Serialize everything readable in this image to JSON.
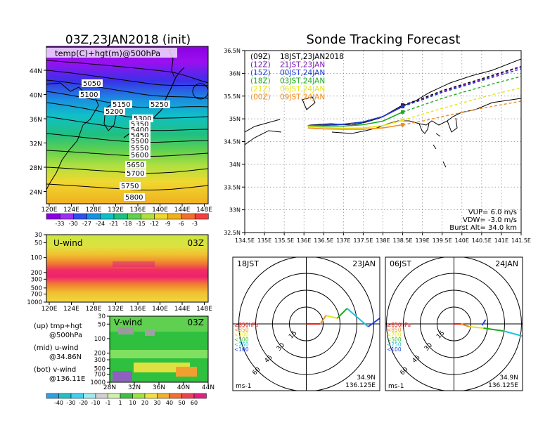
{
  "left": {
    "title": "03Z,23JAN2018 (init)",
    "map_label": "temp(C)+hgt(m)@500hPa",
    "contour_labels": [
      "5050",
      "5100",
      "5150",
      "5200",
      "5250",
      "5300",
      "5350",
      "5400",
      "5450",
      "5500",
      "5550",
      "5600",
      "5650",
      "5700",
      "5750",
      "5800"
    ],
    "lat_ticks": [
      "44N",
      "40N",
      "36N",
      "32N",
      "28N",
      "24N"
    ],
    "lon_ticks": [
      "120E",
      "124E",
      "128E",
      "132E",
      "136E",
      "140E",
      "144E",
      "148E"
    ],
    "temp_colorbar": [
      "-33",
      "-30",
      "-27",
      "-24",
      "-21",
      "-18",
      "-15",
      "-12",
      "-9",
      "-6",
      "-3"
    ],
    "uwind": {
      "label": "U-wind",
      "time": "03Z",
      "p_ticks": [
        "30",
        "50",
        "100",
        "200",
        "300",
        "500",
        "700",
        "1000"
      ]
    },
    "vwind": {
      "label": "V-wind",
      "time": "03Z",
      "p_ticks": [
        "30",
        "50",
        "100",
        "200",
        "300",
        "500",
        "700",
        "1000"
      ],
      "lat_ticks": [
        "28N",
        "32N",
        "36N",
        "40N",
        "44N"
      ]
    },
    "legend_lines": [
      [
        "(up) tmp+hgt",
        "@500hPa"
      ],
      [
        "(mid) u-wind",
        "@34.86N"
      ],
      [
        "(bot) v-wind",
        "@136.11E"
      ]
    ],
    "wind_colorbar": [
      "-40",
      "-30",
      "-20",
      "-10",
      "-1",
      "1",
      "10",
      "20",
      "30",
      "40",
      "50",
      "60"
    ]
  },
  "right": {
    "title": "Sonde Tracking Forecast",
    "legend": [
      {
        "tag": "(09Z)",
        "text": "18JST,23JAN2018",
        "color": "#000000"
      },
      {
        "tag": "(12Z)",
        "text": "21JST,23JAN",
        "color": "#7a1ab3"
      },
      {
        "tag": "(15Z)",
        "text": "00JST,24JAN",
        "color": "#1a3ccf"
      },
      {
        "tag": "(18Z)",
        "text": "03JST,24JAN",
        "color": "#1faa1f"
      },
      {
        "tag": "(21Z)",
        "text": "06JST,24JAN",
        "color": "#e6e41e"
      },
      {
        "tag": "(00Z)",
        "text": "09JST,24JAN",
        "color": "#f08c1e"
      }
    ],
    "lat_ticks": [
      "36.5N",
      "36N",
      "35.5N",
      "35N",
      "34.5N",
      "34N",
      "33.5N",
      "33N",
      "32.5N"
    ],
    "lon_ticks": [
      "134.5E",
      "135E",
      "135.5E",
      "136E",
      "136.5E",
      "137E",
      "137.5E",
      "138E",
      "138.5E",
      "139E",
      "139.5E",
      "140E",
      "140.5E",
      "141E",
      "141.5E"
    ],
    "params": [
      "VUP= 6.0 m/s",
      "VDW= -3.0 m/s",
      "Burst Alt= 34.0 km"
    ]
  },
  "polars": [
    {
      "left_label": "18JST",
      "right_label": "23JAN",
      "lat": "34.9N",
      "lon": "136.125E"
    },
    {
      "left_label": "06JST",
      "right_label": "24JAN",
      "lat": "34.9N",
      "lon": "136.125E"
    }
  ],
  "polar_common": {
    "ring_labels": [
      "15",
      "30",
      "45",
      "60"
    ],
    "unit": "ms-1",
    "levels": [
      {
        "text": "≥850hPa",
        "color": "#e82020"
      },
      {
        "text": "<850",
        "color": "#f08c1e"
      },
      {
        "text": "<700",
        "color": "#e6e41e"
      },
      {
        "text": "<500",
        "color": "#30c030"
      },
      {
        "text": "<250",
        "color": "#20c0e0"
      },
      {
        "text": "<100",
        "color": "#2040e0"
      }
    ]
  },
  "chart_data": [
    {
      "type": "line",
      "title": "Sonde Tracking Forecast",
      "xlim": [
        134.5,
        141.5
      ],
      "ylim": [
        32.5,
        36.5
      ],
      "series": [
        {
          "name": "(09Z) 18JST,23JAN2018",
          "color": "#000000",
          "x": [
            136.1,
            136.5,
            137.0,
            137.5,
            138.0,
            138.5,
            139.0,
            139.5,
            140.0,
            140.5,
            141.0,
            141.5
          ],
          "y": [
            34.85,
            34.86,
            34.88,
            34.93,
            35.05,
            35.3,
            35.45,
            35.62,
            35.75,
            35.88,
            36.02,
            36.15
          ]
        },
        {
          "name": "(12Z) 21JST,23JAN",
          "color": "#7a1ab3",
          "x": [
            136.1,
            136.5,
            137.0,
            137.5,
            138.0,
            138.5,
            139.0,
            139.5,
            140.0,
            140.5,
            141.0,
            141.5
          ],
          "y": [
            34.85,
            34.86,
            34.88,
            34.93,
            35.05,
            35.28,
            35.43,
            35.6,
            35.73,
            35.86,
            36.0,
            36.14
          ]
        },
        {
          "name": "(15Z) 00JST,24JAN",
          "color": "#1a3ccf",
          "x": [
            136.1,
            136.5,
            137.0,
            137.5,
            138.0,
            138.5,
            139.0,
            139.5,
            140.0,
            140.5,
            141.0,
            141.5
          ],
          "y": [
            34.85,
            34.86,
            34.88,
            34.93,
            35.05,
            35.27,
            35.42,
            35.58,
            35.71,
            35.84,
            35.97,
            36.1
          ]
        },
        {
          "name": "(18Z) 03JST,24JAN",
          "color": "#1faa1f",
          "x": [
            136.1,
            136.5,
            137.0,
            137.5,
            138.0,
            138.5,
            139.0,
            139.5,
            140.0,
            140.5,
            141.0,
            141.5
          ],
          "y": [
            34.85,
            34.84,
            34.84,
            34.87,
            34.95,
            35.15,
            35.3,
            35.45,
            35.58,
            35.7,
            35.82,
            35.93
          ]
        },
        {
          "name": "(21Z) 06JST,24JAN",
          "color": "#e6e41e",
          "x": [
            136.1,
            136.5,
            137.0,
            137.5,
            138.0,
            138.5,
            139.0,
            139.5,
            140.0,
            140.5,
            141.0,
            141.5
          ],
          "y": [
            34.83,
            34.81,
            34.79,
            34.8,
            34.85,
            34.97,
            35.1,
            35.23,
            35.35,
            35.47,
            35.58,
            35.68
          ]
        },
        {
          "name": "(00Z) 09JST,24JAN",
          "color": "#f08c1e",
          "x": [
            136.1,
            136.5,
            137.0,
            137.5,
            138.0,
            138.5,
            139.0,
            139.5,
            140.0,
            140.5,
            141.0,
            141.5
          ],
          "y": [
            34.8,
            34.78,
            34.77,
            34.77,
            34.8,
            34.87,
            34.95,
            35.05,
            35.14,
            35.23,
            35.31,
            35.39
          ]
        }
      ]
    }
  ]
}
